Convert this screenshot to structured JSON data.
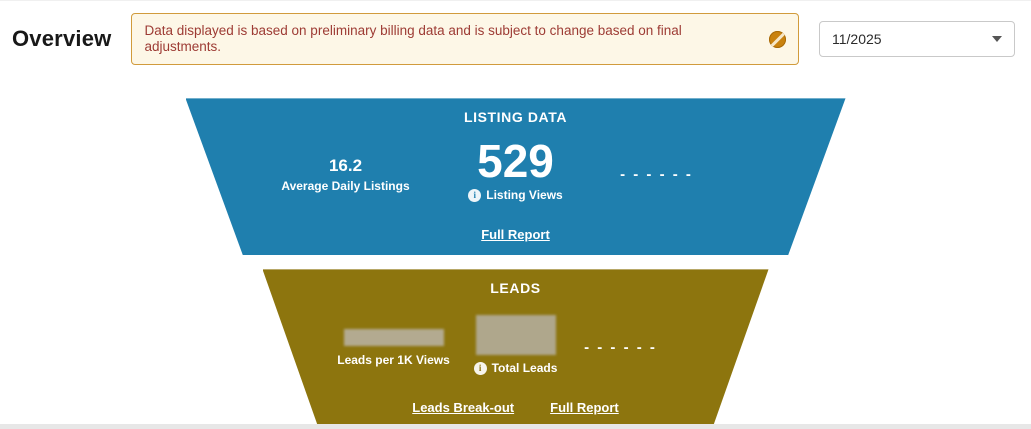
{
  "page": {
    "title": "Overview"
  },
  "notice": {
    "text": "Data displayed is based on preliminary billing data and is subject to change based on final adjustments.",
    "icon": "prohibited-icon",
    "border_color": "#d19b3c",
    "background_color": "#fdf7e7",
    "text_color": "#9d3b34",
    "icon_color": "#c9820f"
  },
  "date_picker": {
    "value": "11/2025"
  },
  "funnels": {
    "listing": {
      "title": "LISTING DATA",
      "color": "#1f7fae",
      "avg_daily": {
        "value": "16.2",
        "label": "Average Daily Listings"
      },
      "views": {
        "value": "529",
        "label": "Listing Views",
        "info_icon": "info-icon"
      },
      "dashes": "- - - - - -",
      "links": {
        "full_report": "Full Report"
      }
    },
    "leads": {
      "title": "LEADS",
      "color": "#8d750e",
      "per_1k": {
        "label": "Leads per 1K Views",
        "value_masked": true,
        "masked_color": "#b3aa90"
      },
      "total": {
        "label": "Total Leads",
        "value_masked": true,
        "masked_color": "#afa78c",
        "info_icon": "info-icon"
      },
      "dashes": "- - - - - -",
      "links": {
        "leads_breakout": "Leads Break-out",
        "full_report": "Full Report"
      }
    }
  }
}
